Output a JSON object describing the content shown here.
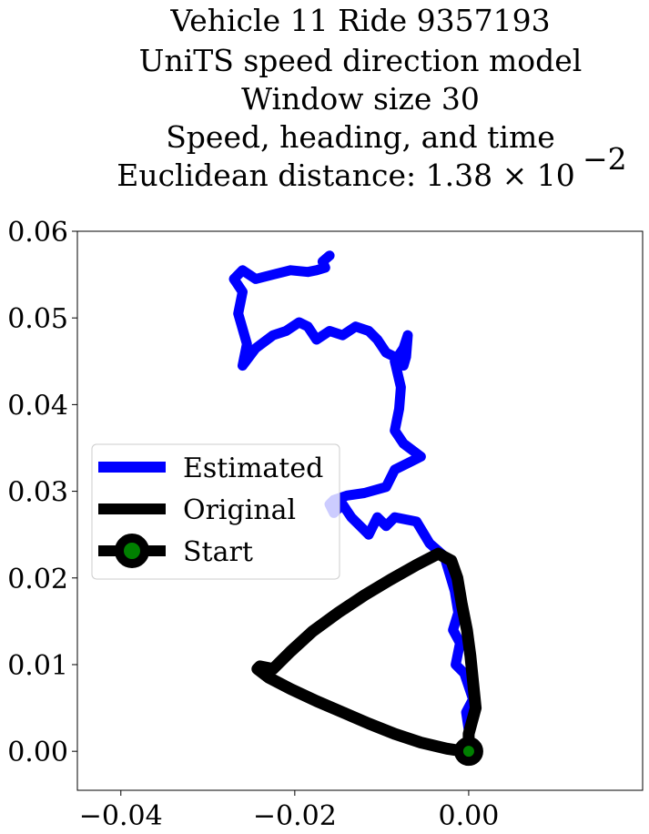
{
  "chart_data": {
    "type": "line",
    "title_lines": [
      "Vehicle 11 Ride 9357193",
      "UniTS speed direction model",
      "Window size 30",
      "Speed, heading, and time",
      "Euclidean distance: 1.38 × 10"
    ],
    "title_exponent": "−2",
    "xlabel": "",
    "ylabel": "",
    "xlim": [
      -0.045,
      0.02
    ],
    "ylim": [
      -0.0045,
      0.06
    ],
    "x_ticks": [
      -0.04,
      -0.02,
      0.0
    ],
    "x_tick_labels": [
      "−0.04",
      "−0.02",
      "0.00"
    ],
    "y_ticks": [
      0.0,
      0.01,
      0.02,
      0.03,
      0.04,
      0.05,
      0.06
    ],
    "y_tick_labels": [
      "0.00",
      "0.01",
      "0.02",
      "0.03",
      "0.04",
      "0.05",
      "0.06"
    ],
    "grid": false,
    "legend_position": "center-left",
    "series": [
      {
        "name": "Estimated",
        "color": "#0000ff",
        "x": [
          0.0,
          -0.0003,
          0.0005,
          -0.0005,
          -0.0015,
          -0.001,
          -0.0018,
          -0.0012,
          -0.0016,
          -0.0022,
          -0.0028,
          -0.0045,
          -0.006,
          -0.0085,
          -0.0095,
          -0.0105,
          -0.0115,
          -0.012,
          -0.0135,
          -0.0145,
          -0.0155,
          -0.016,
          -0.0155,
          -0.014,
          -0.012,
          -0.0095,
          -0.0085,
          -0.0065,
          -0.0055,
          -0.0075,
          -0.0085,
          -0.008,
          -0.0078,
          -0.0085,
          -0.0075,
          -0.007,
          -0.0072,
          -0.0075,
          -0.0085,
          -0.0095,
          -0.0105,
          -0.0115,
          -0.013,
          -0.0145,
          -0.016,
          -0.0175,
          -0.0185,
          -0.0195,
          -0.021,
          -0.0225,
          -0.0245,
          -0.026,
          -0.0255,
          -0.0265,
          -0.026,
          -0.027,
          -0.026,
          -0.0245,
          -0.0225,
          -0.0205,
          -0.0185,
          -0.0175,
          -0.0165,
          -0.0168,
          -0.016
        ],
        "y": [
          0.0025,
          0.0045,
          0.006,
          0.009,
          0.01,
          0.0125,
          0.014,
          0.016,
          0.0185,
          0.0205,
          0.0225,
          0.024,
          0.0265,
          0.027,
          0.026,
          0.027,
          0.025,
          0.0255,
          0.027,
          0.0285,
          0.0275,
          0.0285,
          0.029,
          0.0295,
          0.0298,
          0.0305,
          0.0325,
          0.0335,
          0.034,
          0.0355,
          0.037,
          0.0395,
          0.042,
          0.045,
          0.0465,
          0.048,
          0.0455,
          0.0445,
          0.0455,
          0.046,
          0.0475,
          0.0485,
          0.049,
          0.048,
          0.0485,
          0.0475,
          0.049,
          0.0495,
          0.0485,
          0.048,
          0.0465,
          0.0445,
          0.047,
          0.0505,
          0.053,
          0.0545,
          0.0555,
          0.0545,
          0.055,
          0.0555,
          0.0553,
          0.0555,
          0.0558,
          0.0565,
          0.0572
        ]
      },
      {
        "name": "Original",
        "color": "#000000",
        "x": [
          0.0,
          0.0,
          0.0008,
          0.0005,
          0.0002,
          -0.0002,
          -0.0008,
          -0.0013,
          -0.002,
          -0.0035,
          -0.006,
          -0.009,
          -0.012,
          -0.015,
          -0.018,
          -0.0205,
          -0.0225,
          -0.024,
          -0.0243,
          -0.023,
          -0.0205,
          -0.0175,
          -0.0145,
          -0.0115,
          -0.0085,
          -0.0055,
          -0.0025,
          -0.0005
        ],
        "y": [
          0.0,
          0.002,
          0.005,
          0.008,
          0.011,
          0.014,
          0.017,
          0.02,
          0.022,
          0.0228,
          0.0215,
          0.0198,
          0.018,
          0.016,
          0.0138,
          0.0115,
          0.0095,
          0.0098,
          0.0095,
          0.0085,
          0.0072,
          0.0058,
          0.0045,
          0.0032,
          0.002,
          0.001,
          0.0003,
          0.0
        ]
      }
    ],
    "start_point": {
      "x": 0.0,
      "y": 0.0
    },
    "legend": [
      {
        "label": "Estimated",
        "line_color": "#0000ff",
        "marker": false
      },
      {
        "label": "Original",
        "line_color": "#000000",
        "marker": false
      },
      {
        "label": "Start",
        "line_color": "#000000",
        "marker": true,
        "marker_face": "#008000"
      }
    ]
  }
}
